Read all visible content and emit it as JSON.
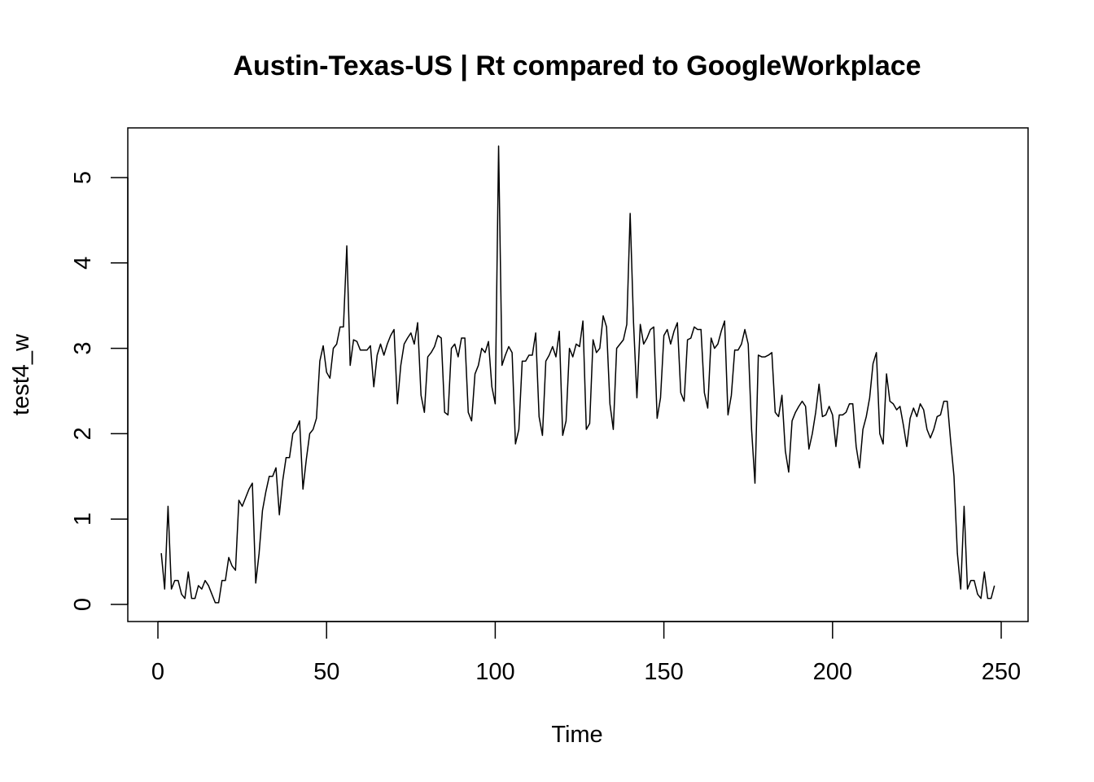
{
  "chart_data": {
    "type": "line",
    "title": "Austin-Texas-US | Rt compared to GoogleWorkplace",
    "xlabel": "Time",
    "ylabel": "test4_w",
    "xlim": [
      1,
      248
    ],
    "ylim": [
      0,
      5.37
    ],
    "xticks": [
      0,
      50,
      100,
      150,
      200,
      250
    ],
    "yticks": [
      0,
      1,
      2,
      3,
      4,
      5
    ],
    "xtick_labels": [
      "0",
      "50",
      "100",
      "150",
      "200",
      "250"
    ],
    "ytick_labels": [
      "0",
      "1",
      "2",
      "3",
      "4",
      "5"
    ],
    "grid": false,
    "line_color": "#000000",
    "series": [
      {
        "values": [
          0.6,
          0.18,
          1.15,
          0.18,
          0.28,
          0.28,
          0.12,
          0.07,
          0.38,
          0.07,
          0.07,
          0.22,
          0.18,
          0.28,
          0.22,
          0.12,
          0.02,
          0.02,
          0.28,
          0.28,
          0.55,
          0.45,
          0.4,
          1.22,
          1.15,
          1.25,
          1.35,
          1.42,
          0.25,
          0.6,
          1.1,
          1.32,
          1.5,
          1.5,
          1.6,
          1.05,
          1.45,
          1.72,
          1.72,
          2.0,
          2.05,
          2.15,
          1.35,
          1.7,
          2.0,
          2.05,
          2.18,
          2.85,
          3.03,
          2.72,
          2.65,
          3.0,
          3.05,
          3.25,
          3.25,
          4.2,
          2.8,
          3.1,
          3.08,
          2.98,
          2.98,
          2.98,
          3.03,
          2.55,
          2.92,
          3.05,
          2.92,
          3.05,
          3.15,
          3.22,
          2.35,
          2.8,
          3.05,
          3.12,
          3.18,
          3.05,
          3.3,
          2.45,
          2.25,
          2.9,
          2.95,
          3.02,
          3.15,
          3.12,
          2.25,
          2.22,
          3.0,
          3.05,
          2.9,
          3.12,
          3.12,
          2.25,
          2.15,
          2.7,
          2.8,
          3.0,
          2.95,
          3.08,
          2.55,
          2.35,
          5.37,
          2.8,
          2.92,
          3.02,
          2.95,
          1.88,
          2.05,
          2.85,
          2.85,
          2.92,
          2.92,
          3.18,
          2.2,
          1.98,
          2.85,
          2.92,
          3.02,
          2.9,
          3.2,
          1.98,
          2.15,
          3.0,
          2.9,
          3.05,
          3.02,
          3.32,
          2.05,
          2.12,
          3.1,
          2.95,
          3.0,
          3.38,
          3.25,
          2.35,
          2.05,
          3.0,
          3.05,
          3.1,
          3.28,
          4.58,
          3.3,
          2.42,
          3.28,
          3.05,
          3.12,
          3.22,
          3.25,
          2.18,
          2.42,
          3.15,
          3.22,
          3.05,
          3.2,
          3.3,
          2.48,
          2.38,
          3.1,
          3.12,
          3.25,
          3.22,
          3.22,
          2.48,
          2.3,
          3.12,
          3.0,
          3.05,
          3.2,
          3.32,
          2.22,
          2.45,
          2.98,
          2.98,
          3.05,
          3.22,
          3.05,
          2.05,
          1.42,
          2.92,
          2.9,
          2.9,
          2.92,
          2.95,
          2.25,
          2.2,
          2.45,
          1.8,
          1.55,
          2.15,
          2.25,
          2.32,
          2.38,
          2.32,
          1.82,
          2.0,
          2.25,
          2.58,
          2.2,
          2.22,
          2.32,
          2.22,
          1.85,
          2.22,
          2.22,
          2.25,
          2.35,
          2.35,
          1.85,
          1.6,
          2.05,
          2.2,
          2.42,
          2.82,
          2.95,
          2.0,
          1.88,
          2.7,
          2.38,
          2.35,
          2.28,
          2.32,
          2.1,
          1.85,
          2.18,
          2.3,
          2.2,
          2.35,
          2.28,
          2.05,
          1.95,
          2.05,
          2.2,
          2.22,
          2.38,
          2.38,
          1.92,
          1.5,
          0.6,
          0.18,
          1.15,
          0.18,
          0.28,
          0.28,
          0.12,
          0.07,
          0.38,
          0.07,
          0.07,
          0.22
        ]
      }
    ]
  }
}
